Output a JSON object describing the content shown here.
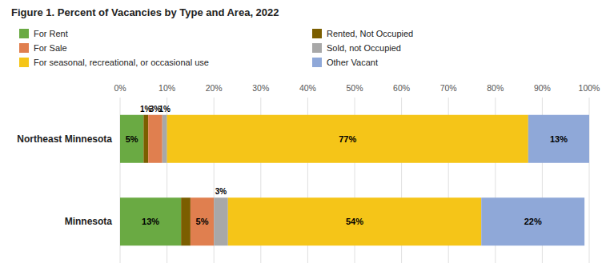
{
  "chart_data": {
    "type": "bar",
    "orientation": "horizontal",
    "stacked": true,
    "title": "Figure 1. Percent of Vacancies by Type and Area, 2022",
    "categories": [
      "Northeast Minnesota",
      "Minnesota"
    ],
    "series": [
      {
        "name": "For Rent",
        "color": "#6aaa43",
        "values": [
          5,
          13
        ],
        "value_labels": [
          "5%",
          "13%"
        ]
      },
      {
        "name": "Rented, Not Occupied",
        "color": "#7b5e00",
        "values": [
          1,
          2
        ],
        "value_labels": [
          "1%",
          null
        ]
      },
      {
        "name": "For Sale",
        "color": "#e07f4f",
        "values": [
          3,
          5
        ],
        "value_labels": [
          "3%",
          "5%"
        ]
      },
      {
        "name": "Sold, not Occupied",
        "color": "#a8a8a8",
        "values": [
          1,
          3
        ],
        "value_labels": [
          "1%",
          "3%"
        ]
      },
      {
        "name": "For seasonal, recreational, or occasional use",
        "color": "#f5c518",
        "values": [
          77,
          54
        ],
        "value_labels": [
          "77%",
          "54%"
        ]
      },
      {
        "name": "Other Vacant",
        "color": "#8fa8d8",
        "values": [
          13,
          22
        ],
        "value_labels": [
          "13%",
          "22%"
        ]
      }
    ],
    "xlim": [
      0,
      100
    ],
    "xticks": [
      {
        "value": 0,
        "label": "0%"
      },
      {
        "value": 10,
        "label": "10%"
      },
      {
        "value": 20,
        "label": "20%"
      },
      {
        "value": 30,
        "label": "30%"
      },
      {
        "value": 40,
        "label": "40%"
      },
      {
        "value": 50,
        "label": "50%"
      },
      {
        "value": 60,
        "label": "60%"
      },
      {
        "value": 70,
        "label": "70%"
      },
      {
        "value": 80,
        "label": "80%"
      },
      {
        "value": 90,
        "label": "90%"
      },
      {
        "value": 100,
        "label": "100%"
      }
    ],
    "grid": true,
    "legend": "top",
    "data_labels": true
  }
}
